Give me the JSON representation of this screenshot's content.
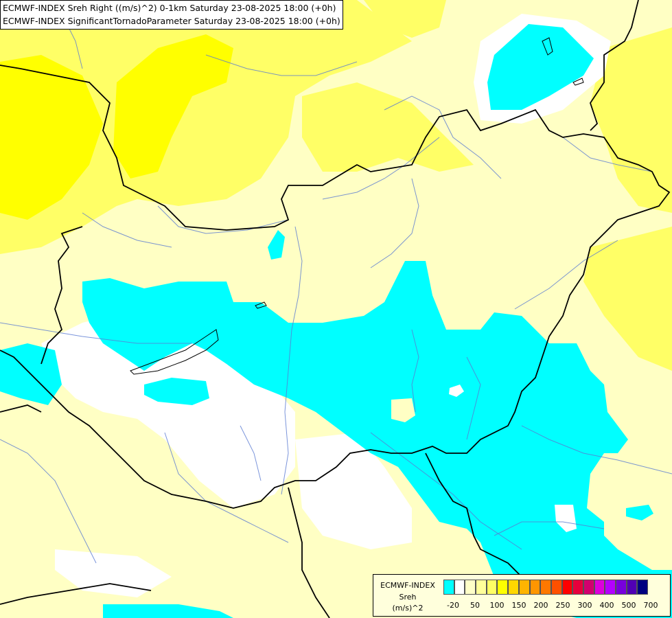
{
  "title": {
    "line1": "ECMWF-INDEX Sreh Right ((m/s)^2) 0-1km Saturday 23-08-2025 18:00 (+0h)",
    "line2": "ECMWF-INDEX SignificantTornadoParameter Saturday 23-08-2025 18:00 (+0h)"
  },
  "legend": {
    "source": "ECMWF-INDEX",
    "variable": "Sreh",
    "unit": "(m/s)^2",
    "colors": [
      "#00ffff",
      "#ffffff",
      "#ffffc8",
      "#ffff9a",
      "#ffff64",
      "#ffff00",
      "#ffd700",
      "#ffb400",
      "#ff9600",
      "#ff7800",
      "#ff5000",
      "#ff0000",
      "#e6003c",
      "#d2006e",
      "#dc00dc",
      "#b400ff",
      "#7800dc",
      "#5000b4",
      "#000080"
    ],
    "ticks": [
      "-20",
      "50",
      "100",
      "150",
      "200",
      "250",
      "300",
      "400",
      "500",
      "700"
    ]
  },
  "colors": {
    "light_yellow": "#ffffc4",
    "yellow": "#ffff66",
    "bright_yellow": "#ffff00",
    "cyan": "#00ffff",
    "white": "#ffffff",
    "border": "#000000",
    "river": "#5a7ad2"
  }
}
